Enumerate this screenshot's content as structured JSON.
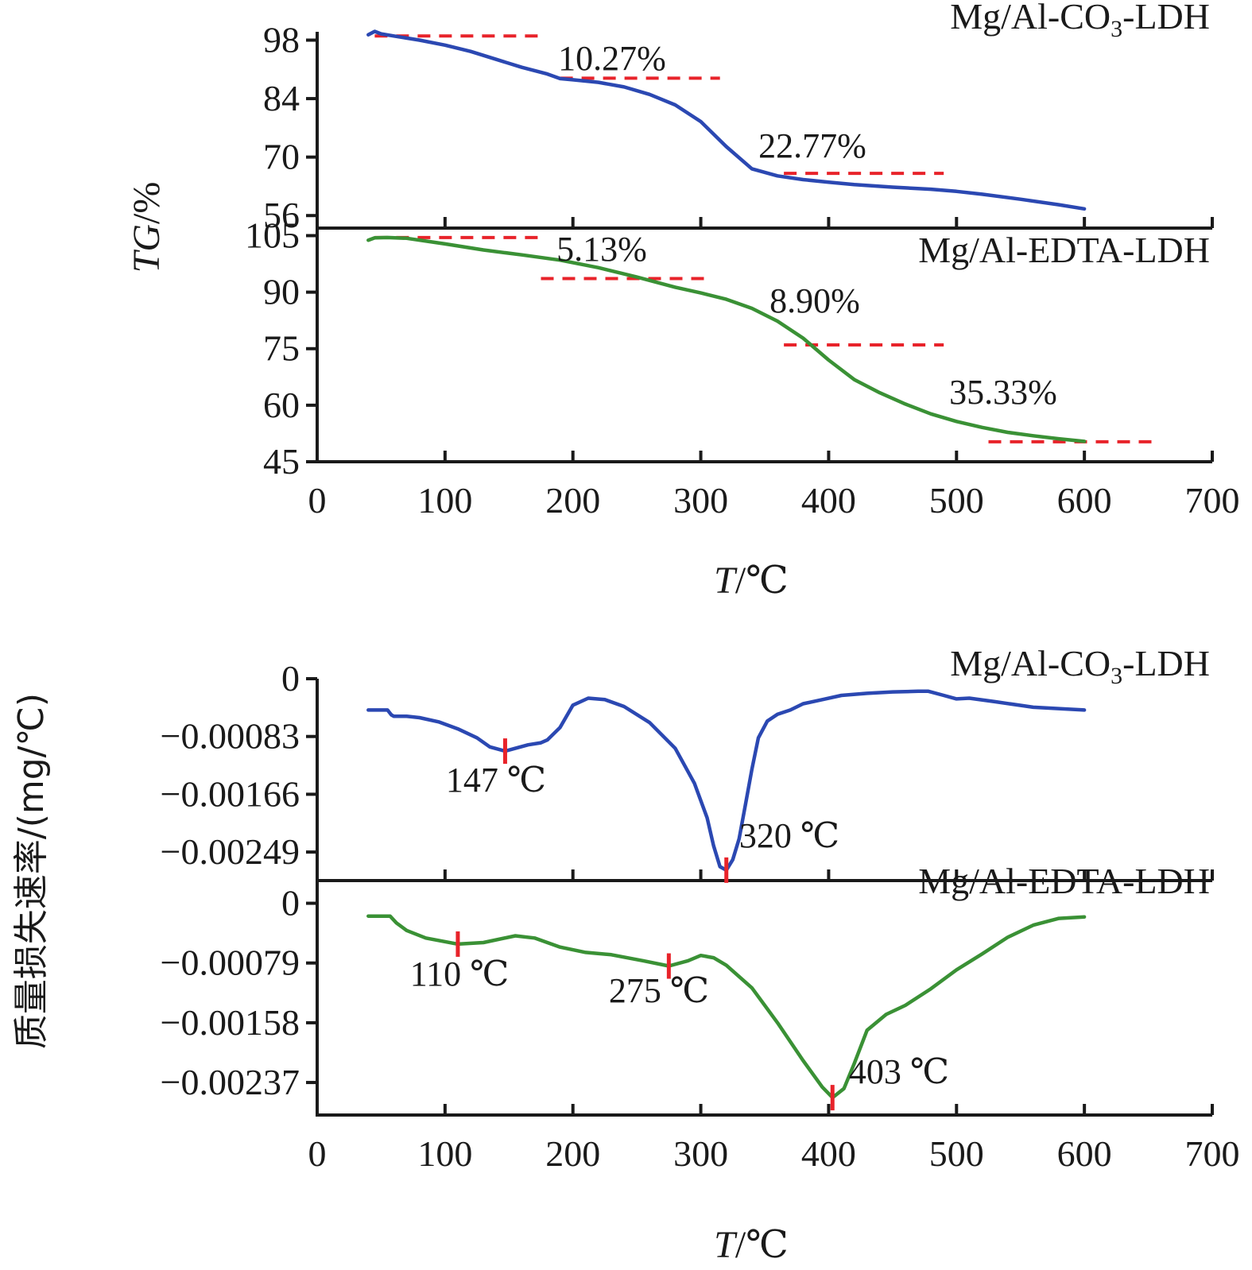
{
  "figure": {
    "top_ylabel_italic": "TG",
    "top_ylabel_unit": "/%",
    "bottom_ylabel": "质量损失速率/(mg/℃)",
    "xlabel_italic": "T",
    "xlabel_unit": "/℃"
  },
  "colors": {
    "co3": "#2b48b2",
    "edta": "#3a9135",
    "marker": "#e8232a",
    "axis": "#1a1a1a"
  },
  "chart_data": [
    {
      "type": "line",
      "title": "Mg/Al-CO3-LDH",
      "title_parts": [
        "Mg/Al-CO",
        "3",
        "-LDH"
      ],
      "xlim": [
        0,
        700
      ],
      "ylim": [
        53,
        100
      ],
      "yticks": [
        56,
        70,
        84,
        98
      ],
      "xticks": [
        0,
        100,
        200,
        300,
        400,
        500,
        600,
        700
      ],
      "series": [
        {
          "color": "#2b48b2",
          "x": [
            40,
            45,
            50,
            60,
            80,
            100,
            120,
            140,
            160,
            180,
            190,
            200,
            220,
            240,
            260,
            280,
            300,
            320,
            340,
            360,
            380,
            400,
            420,
            450,
            480,
            500,
            520,
            550,
            580,
            600
          ],
          "y": [
            99.3,
            100.1,
            99.5,
            99.0,
            98.0,
            96.8,
            95.3,
            93.4,
            91.5,
            89.9,
            88.8,
            88.5,
            87.9,
            86.8,
            85.0,
            82.5,
            78.5,
            72.5,
            67.2,
            65.5,
            64.6,
            64.0,
            63.4,
            62.8,
            62.3,
            61.8,
            61.1,
            59.9,
            58.6,
            57.6
          ]
        }
      ],
      "steps": [
        {
          "label": "10.27%",
          "x0": 45,
          "x1": 175,
          "y": 99.0
        },
        {
          "label": "",
          "x0": 190,
          "x1": 315,
          "y": 88.9
        },
        {
          "label": "22.77%",
          "x0": 365,
          "x1": 490,
          "y": 66.1
        }
      ],
      "labels": [
        "10.27%",
        "22.77%"
      ]
    },
    {
      "type": "line",
      "title": "Mg/Al-EDTA-LDH",
      "xlim": [
        0,
        700
      ],
      "ylim": [
        45,
        107
      ],
      "yticks": [
        45,
        60,
        75,
        90,
        105
      ],
      "xticks": [
        0,
        100,
        200,
        300,
        400,
        500,
        600,
        700
      ],
      "series": [
        {
          "color": "#3a9135",
          "x": [
            40,
            45,
            55,
            70,
            100,
            130,
            160,
            190,
            220,
            250,
            280,
            300,
            320,
            340,
            360,
            380,
            400,
            420,
            440,
            460,
            480,
            500,
            520,
            540,
            560,
            580,
            600
          ],
          "y": [
            103.8,
            104.4,
            104.5,
            104.3,
            102.8,
            101.2,
            99.9,
            98.5,
            96.5,
            94.0,
            91.3,
            89.8,
            88.1,
            85.7,
            82.3,
            77.8,
            72.0,
            66.8,
            63.3,
            60.3,
            57.7,
            55.7,
            54.1,
            52.8,
            51.9,
            51.1,
            50.4
          ]
        }
      ],
      "steps": [
        {
          "label": "5.13%",
          "x0": 45,
          "x1": 175,
          "y": 104.5
        },
        {
          "label": "8.90%",
          "x0": 175,
          "x1": 305,
          "y": 93.6
        },
        {
          "label": "",
          "x0": 365,
          "x1": 490,
          "y": 76.0
        },
        {
          "label": "35.33%",
          "x0": 525,
          "x1": 655,
          "y": 50.3
        }
      ],
      "labels": [
        "5.13%",
        "8.90%",
        "35.33%"
      ]
    },
    {
      "type": "line",
      "title": "Mg/Al-CO3-LDH",
      "title_parts": [
        "Mg/Al-CO",
        "3",
        "-LDH"
      ],
      "xlim": [
        0,
        700
      ],
      "ylim": [
        -0.0029,
        0
      ],
      "yticks": [
        0,
        -0.00083,
        -0.00166,
        -0.00249
      ],
      "ytick_labels": [
        "0",
        "−0.00083",
        "−0.00166",
        "−0.00249"
      ],
      "xticks": [
        0,
        100,
        200,
        300,
        400,
        500,
        600,
        700
      ],
      "series": [
        {
          "color": "#2b48b2",
          "x": [
            40,
            55,
            58,
            60,
            70,
            80,
            95,
            110,
            125,
            135,
            147,
            155,
            165,
            175,
            180,
            190,
            200,
            212,
            225,
            240,
            260,
            280,
            295,
            305,
            310,
            315,
            320,
            325,
            330,
            335,
            340,
            345,
            352,
            360,
            370,
            380,
            395,
            410,
            430,
            450,
            470,
            478,
            490,
            500,
            510,
            530,
            560,
            600
          ],
          "y": [
            -0.00045,
            -0.00045,
            -0.00052,
            -0.00054,
            -0.00054,
            -0.00056,
            -0.00062,
            -0.00072,
            -0.00085,
            -0.00098,
            -0.00104,
            -0.001,
            -0.00095,
            -0.00092,
            -0.00088,
            -0.0007,
            -0.00038,
            -0.00028,
            -0.0003,
            -0.0004,
            -0.00063,
            -0.001,
            -0.0015,
            -0.002,
            -0.0024,
            -0.0027,
            -0.00275,
            -0.0026,
            -0.0023,
            -0.0018,
            -0.0013,
            -0.00085,
            -0.00061,
            -0.00051,
            -0.00045,
            -0.00036,
            -0.0003,
            -0.00024,
            -0.00021,
            -0.00019,
            -0.00018,
            -0.00018,
            -0.00024,
            -0.00029,
            -0.00028,
            -0.00033,
            -0.00041,
            -0.00045
          ]
        }
      ],
      "markers": [
        {
          "x": 147,
          "y": -0.00104,
          "label": "147 ℃"
        },
        {
          "x": 320,
          "y": -0.00275,
          "label": "320 ℃"
        }
      ],
      "labels": [
        "147 ℃",
        "320 ℃"
      ]
    },
    {
      "type": "line",
      "title": "Mg/Al-EDTA-LDH",
      "xlim": [
        0,
        700
      ],
      "ylim": [
        -0.0028,
        0.0003
      ],
      "yticks": [
        0,
        -0.00079,
        -0.00158,
        -0.00237
      ],
      "ytick_labels": [
        "0",
        "−0.00079",
        "−0.00158",
        "−0.00237"
      ],
      "xticks": [
        0,
        100,
        200,
        300,
        400,
        500,
        600,
        700
      ],
      "series": [
        {
          "color": "#3a9135",
          "x": [
            40,
            57,
            62,
            70,
            85,
            110,
            130,
            155,
            170,
            190,
            210,
            230,
            255,
            275,
            290,
            300,
            310,
            320,
            340,
            360,
            380,
            395,
            403,
            412,
            420,
            430,
            445,
            460,
            480,
            500,
            520,
            540,
            560,
            580,
            600
          ],
          "y": [
            -0.00017,
            -0.00017,
            -0.00026,
            -0.00036,
            -0.00046,
            -0.00054,
            -0.00052,
            -0.00043,
            -0.00046,
            -0.00058,
            -0.00065,
            -0.00068,
            -0.00076,
            -0.00083,
            -0.00076,
            -0.00069,
            -0.00072,
            -0.00082,
            -0.00112,
            -0.00158,
            -0.00208,
            -0.00243,
            -0.00257,
            -0.00245,
            -0.00212,
            -0.00168,
            -0.00147,
            -0.00135,
            -0.00113,
            -0.00088,
            -0.00067,
            -0.00045,
            -0.00029,
            -0.0002,
            -0.00018
          ]
        }
      ],
      "markers": [
        {
          "x": 110,
          "y": -0.00054,
          "label": "110 ℃"
        },
        {
          "x": 275,
          "y": -0.00083,
          "label": "275 ℃"
        },
        {
          "x": 403,
          "y": -0.00257,
          "label": "403 ℃"
        }
      ],
      "labels": [
        "110 ℃",
        "275 ℃",
        "403 ℃"
      ]
    }
  ]
}
